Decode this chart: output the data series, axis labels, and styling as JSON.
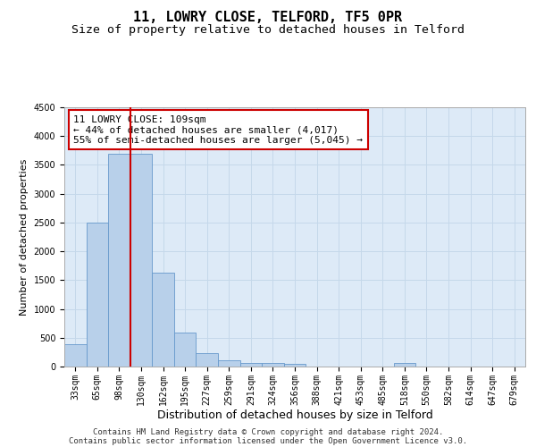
{
  "title": "11, LOWRY CLOSE, TELFORD, TF5 0PR",
  "subtitle": "Size of property relative to detached houses in Telford",
  "xlabel": "Distribution of detached houses by size in Telford",
  "ylabel": "Number of detached properties",
  "categories": [
    "33sqm",
    "65sqm",
    "98sqm",
    "130sqm",
    "162sqm",
    "195sqm",
    "227sqm",
    "259sqm",
    "291sqm",
    "324sqm",
    "356sqm",
    "388sqm",
    "421sqm",
    "453sqm",
    "485sqm",
    "518sqm",
    "550sqm",
    "582sqm",
    "614sqm",
    "647sqm",
    "679sqm"
  ],
  "values": [
    390,
    2500,
    3700,
    3700,
    1630,
    590,
    230,
    110,
    60,
    55,
    40,
    0,
    0,
    0,
    0,
    60,
    0,
    0,
    0,
    0,
    0
  ],
  "bar_color": "#b8d0ea",
  "bar_edgecolor": "#6699cc",
  "grid_color": "#c5d8ea",
  "bg_color": "#ddeaf7",
  "vline_position": 2.5,
  "vline_color": "#cc0000",
  "annotation_text": "11 LOWRY CLOSE: 109sqm\n← 44% of detached houses are smaller (4,017)\n55% of semi-detached houses are larger (5,045) →",
  "annotation_box_edgecolor": "#cc0000",
  "ylim": [
    0,
    4500
  ],
  "yticks": [
    0,
    500,
    1000,
    1500,
    2000,
    2500,
    3000,
    3500,
    4000,
    4500
  ],
  "footer_line1": "Contains HM Land Registry data © Crown copyright and database right 2024.",
  "footer_line2": "Contains public sector information licensed under the Open Government Licence v3.0.",
  "title_fontsize": 11,
  "subtitle_fontsize": 9.5,
  "xlabel_fontsize": 9,
  "ylabel_fontsize": 8,
  "tick_fontsize": 7,
  "annotation_fontsize": 8,
  "footer_fontsize": 6.5
}
